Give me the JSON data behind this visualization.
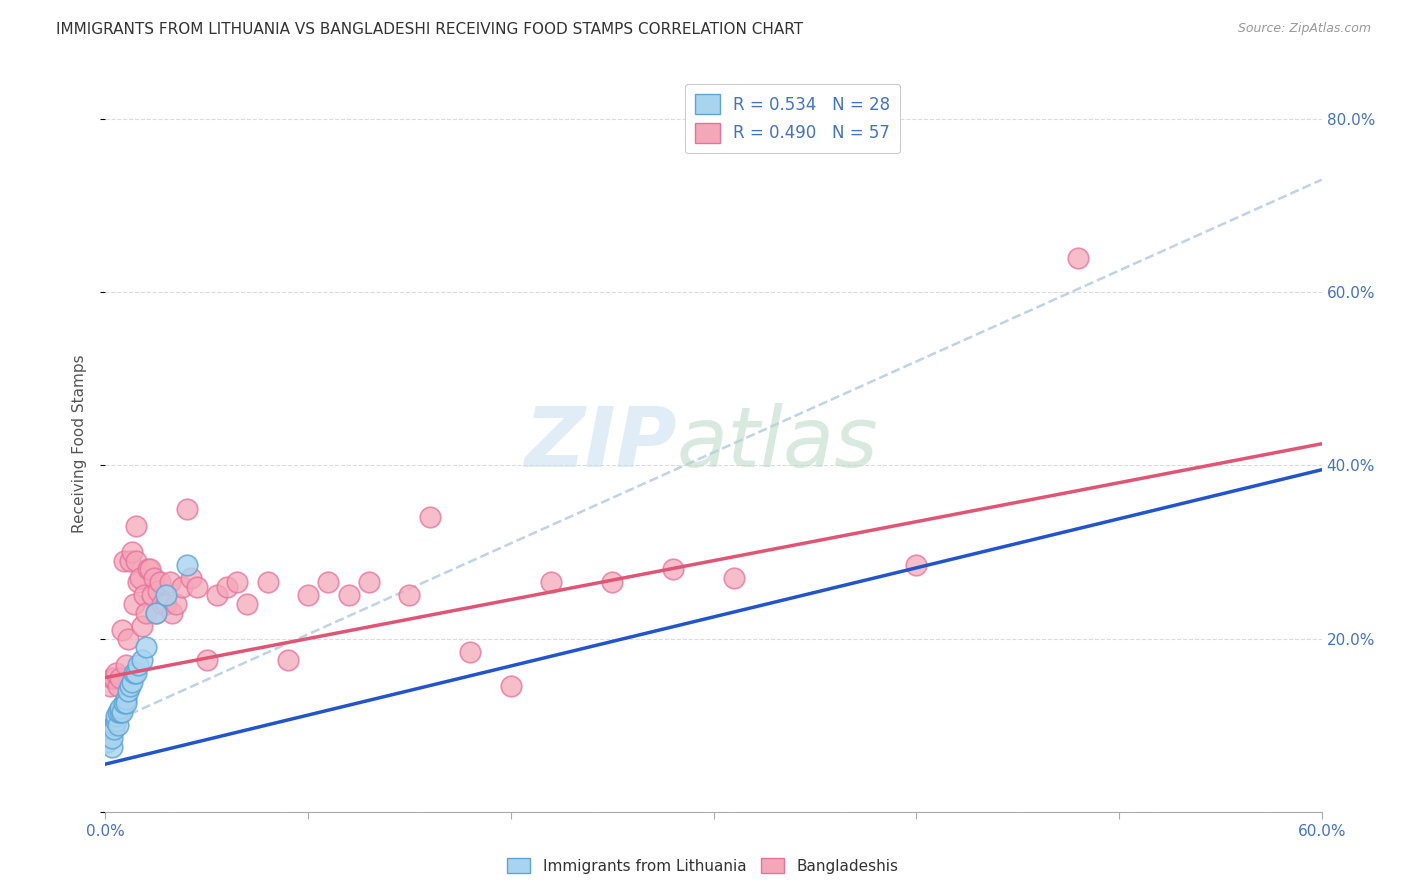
{
  "title": "IMMIGRANTS FROM LITHUANIA VS BANGLADESHI RECEIVING FOOD STAMPS CORRELATION CHART",
  "source": "Source: ZipAtlas.com",
  "ylabel": "Receiving Food Stamps",
  "xlim": [
    0.0,
    0.6
  ],
  "ylim": [
    0.0,
    0.85
  ],
  "xtick_positions": [
    0.0,
    0.1,
    0.2,
    0.3,
    0.4,
    0.5,
    0.6
  ],
  "xticklabels": [
    "0.0%",
    "",
    "",
    "",
    "",
    "",
    "60.0%"
  ],
  "ytick_positions": [
    0.0,
    0.2,
    0.4,
    0.6,
    0.8
  ],
  "yticklabels_right": [
    "",
    "20.0%",
    "40.0%",
    "60.0%",
    "80.0%"
  ],
  "legend_labels_bottom": [
    "Immigrants from Lithuania",
    "Bangladeshis"
  ],
  "background_color": "#ffffff",
  "grid_color": "#d8d8d8",
  "title_color": "#333333",
  "lit_scatter_color_face": "#a8d4f0",
  "lit_scatter_color_edge": "#5ba4d4",
  "ban_scatter_color_face": "#f4a7b9",
  "ban_scatter_color_edge": "#e8709a",
  "lit_line_color": "#2255cc",
  "ban_line_color": "#e05575",
  "dash_line_color": "#b0c8e0",
  "lit_line_x0": 0.0,
  "lit_line_y0": 0.055,
  "lit_line_x1": 0.6,
  "lit_line_y1": 0.395,
  "ban_line_x0": 0.0,
  "ban_line_y0": 0.155,
  "ban_line_x1": 0.6,
  "ban_line_y1": 0.425,
  "dash_line_x0": 0.0,
  "dash_line_y0": 0.1,
  "dash_line_x1": 0.6,
  "dash_line_y1": 0.73,
  "lithuania_x": [
    0.001,
    0.002,
    0.002,
    0.003,
    0.003,
    0.004,
    0.004,
    0.005,
    0.005,
    0.006,
    0.006,
    0.007,
    0.007,
    0.008,
    0.009,
    0.01,
    0.01,
    0.011,
    0.012,
    0.013,
    0.014,
    0.015,
    0.016,
    0.018,
    0.02,
    0.025,
    0.03,
    0.04
  ],
  "lithuania_y": [
    0.08,
    0.09,
    0.095,
    0.075,
    0.085,
    0.1,
    0.095,
    0.105,
    0.11,
    0.1,
    0.115,
    0.115,
    0.12,
    0.115,
    0.125,
    0.13,
    0.125,
    0.14,
    0.145,
    0.15,
    0.16,
    0.16,
    0.17,
    0.175,
    0.19,
    0.23,
    0.25,
    0.285
  ],
  "bangladesh_x": [
    0.002,
    0.003,
    0.004,
    0.005,
    0.006,
    0.007,
    0.008,
    0.009,
    0.01,
    0.011,
    0.012,
    0.013,
    0.014,
    0.015,
    0.015,
    0.016,
    0.017,
    0.018,
    0.019,
    0.02,
    0.021,
    0.022,
    0.023,
    0.024,
    0.025,
    0.026,
    0.027,
    0.028,
    0.03,
    0.032,
    0.033,
    0.035,
    0.038,
    0.04,
    0.042,
    0.045,
    0.05,
    0.055,
    0.06,
    0.065,
    0.07,
    0.08,
    0.09,
    0.1,
    0.11,
    0.12,
    0.13,
    0.15,
    0.16,
    0.18,
    0.2,
    0.22,
    0.25,
    0.28,
    0.31,
    0.4,
    0.48
  ],
  "bangladesh_y": [
    0.145,
    0.155,
    0.155,
    0.16,
    0.145,
    0.155,
    0.21,
    0.29,
    0.17,
    0.2,
    0.29,
    0.3,
    0.24,
    0.33,
    0.29,
    0.265,
    0.27,
    0.215,
    0.25,
    0.23,
    0.28,
    0.28,
    0.25,
    0.27,
    0.23,
    0.255,
    0.265,
    0.24,
    0.24,
    0.265,
    0.23,
    0.24,
    0.26,
    0.35,
    0.27,
    0.26,
    0.175,
    0.25,
    0.26,
    0.265,
    0.24,
    0.265,
    0.175,
    0.25,
    0.265,
    0.25,
    0.265,
    0.25,
    0.34,
    0.185,
    0.145,
    0.265,
    0.265,
    0.28,
    0.27,
    0.285,
    0.64
  ]
}
